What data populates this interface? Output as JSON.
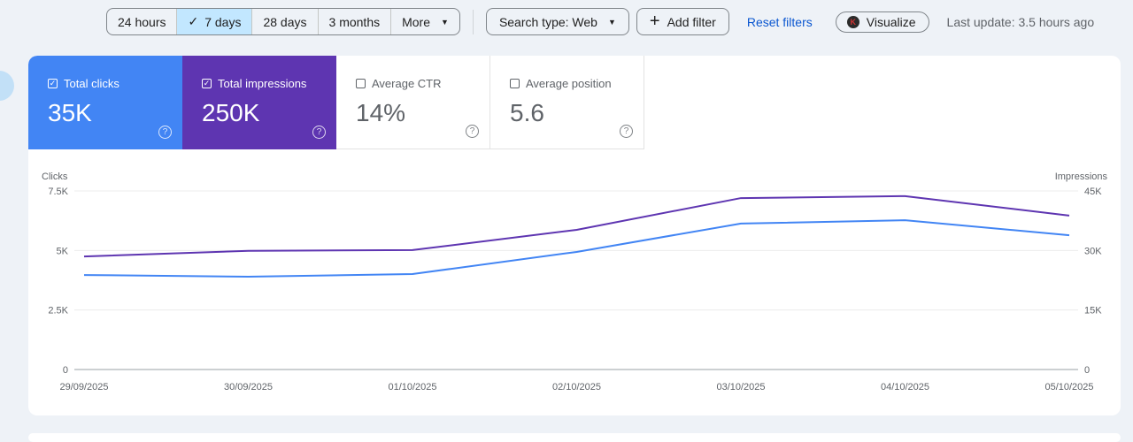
{
  "toolbar": {
    "ranges": [
      "24 hours",
      "7 days",
      "28 days",
      "3 months",
      "More"
    ],
    "selected_range": "7 days",
    "search_type": "Search type: Web",
    "add_filter": "Add filter",
    "reset_filters": "Reset filters",
    "visualize": "Visualize",
    "last_update": "Last update: 3.5 hours ago"
  },
  "metrics": [
    {
      "label": "Total clicks",
      "value": "35K",
      "checked": true
    },
    {
      "label": "Total impressions",
      "value": "250K",
      "checked": true
    },
    {
      "label": "Average CTR",
      "value": "14%",
      "checked": false
    },
    {
      "label": "Average position",
      "value": "5.6",
      "checked": false
    }
  ],
  "colors": {
    "clicks": "#4285f4",
    "impressions": "#5e35b1",
    "accent": "#0b57d0"
  },
  "chart_data": {
    "type": "line",
    "x": [
      "29/09/2025",
      "30/09/2025",
      "01/10/2025",
      "02/10/2025",
      "03/10/2025",
      "04/10/2025",
      "05/10/2025"
    ],
    "series": [
      {
        "name": "Clicks",
        "axis": "left",
        "values": [
          3970,
          3900,
          4010,
          4940,
          6130,
          6270,
          5640
        ]
      },
      {
        "name": "Impressions",
        "axis": "right",
        "values": [
          28500,
          29900,
          30100,
          35200,
          43200,
          43700,
          38800
        ]
      }
    ],
    "ylabel_left": "Clicks",
    "ylabel_right": "Impressions",
    "yticks_left": [
      "0",
      "2.5K",
      "5K",
      "7.5K"
    ],
    "yticks_right": [
      "0",
      "15K",
      "30K",
      "45K"
    ],
    "ylim_left": [
      0,
      7500
    ],
    "ylim_right": [
      0,
      45000
    ],
    "grid": true
  }
}
